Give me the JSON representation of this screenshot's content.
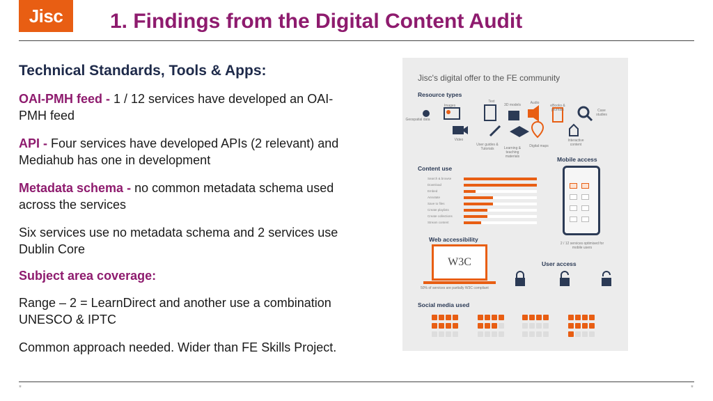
{
  "logo": {
    "text": "Jisc"
  },
  "title": "1. Findings from the Digital Content Audit",
  "section_heading": "Technical Standards, Tools & Apps:",
  "paragraphs": [
    {
      "bold": "OAI-PMH feed - ",
      "text": "1 / 12 services have developed an OAI-PMH feed"
    },
    {
      "bold": "API - ",
      "text": "Four services have developed APIs (2 relevant) and Mediahub has one in development"
    },
    {
      "bold": "Metadata schema - ",
      "text": "no common metadata schema used across the services"
    },
    {
      "bold": "",
      "text": "Six services use no metadata schema and 2 services use Dublin Core"
    }
  ],
  "subject_heading": "Subject area coverage:",
  "paragraphs2": [
    {
      "text": "Range – 2 = LearnDirect and another use a combination UNESCO & IPTC"
    },
    {
      "text": "Common approach needed. Wider than FE Skills Project."
    }
  ],
  "footer": {
    "left": "*",
    "right": "*"
  },
  "infographic": {
    "title": "Jisc's digital offer to the FE community",
    "resource_types": "Resource types",
    "content_use": "Content use",
    "mobile_access": "Mobile access",
    "web_accessibility": "Web accessibility",
    "user_access": "User access",
    "social_media": "Social media used",
    "mobile_note": "2 / 12 services optimised for mobile users",
    "accessibility_note": "50% of services are partially W3C compliant",
    "w3c": "W3C",
    "colors": {
      "accent": "#e85e13",
      "navy": "#2b3a55",
      "title": "#8e1b6e"
    }
  }
}
